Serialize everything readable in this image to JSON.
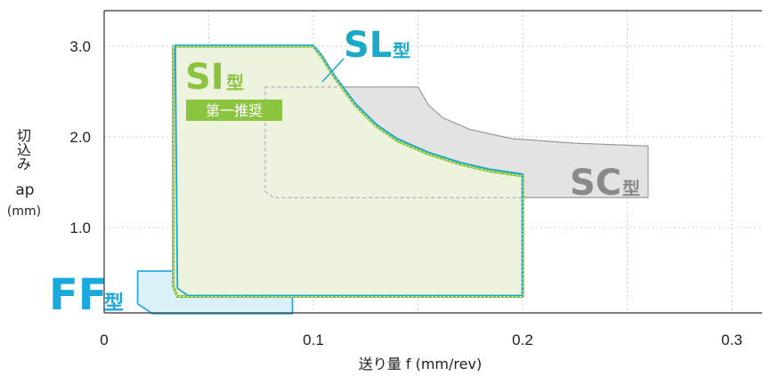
{
  "chart_data": {
    "type": "area",
    "xlabel": "送り量  f (mm/rev)",
    "ylabel_lines": [
      "切",
      "込",
      "み",
      "ap",
      "(mm)"
    ],
    "xlim": [
      0,
      0.32
    ],
    "ylim": [
      0,
      3.3
    ],
    "x_ticks": [
      "0",
      "0.1",
      "0.2",
      "0.3"
    ],
    "y_ticks": [
      "1.0",
      "2.0",
      "3.0"
    ],
    "grid": true,
    "colors": {
      "sl": "#1aa9c8",
      "si": "#8bc540",
      "si_fill": "#eef3e0",
      "sc": "#8a8a8a",
      "sc_fill": "#e3e3e3",
      "ff": "#2aaee0",
      "ff_fill": "#ddf1fa"
    },
    "series": [
      {
        "key": "sc",
        "label_main": "SC",
        "label_suffix": "型",
        "points": [
          [
            0.077,
            2.55
          ],
          [
            0.15,
            2.55
          ],
          [
            0.155,
            2.35
          ],
          [
            0.162,
            2.21
          ],
          [
            0.175,
            2.08
          ],
          [
            0.195,
            1.98
          ],
          [
            0.225,
            1.93
          ],
          [
            0.26,
            1.9
          ],
          [
            0.26,
            1.33
          ],
          [
            0.081,
            1.33
          ],
          [
            0.077,
            1.4
          ]
        ]
      },
      {
        "key": "ff",
        "label_main": "FF",
        "label_suffix": "型",
        "points": [
          [
            0.016,
            0.52
          ],
          [
            0.052,
            0.52
          ],
          [
            0.06,
            0.44
          ],
          [
            0.072,
            0.36
          ],
          [
            0.09,
            0.29
          ],
          [
            0.09,
            0.05
          ],
          [
            0.023,
            0.05
          ],
          [
            0.016,
            0.16
          ]
        ]
      },
      {
        "key": "si",
        "label_main": "SI",
        "label_suffix": "型",
        "badge": "第一推奨",
        "points": [
          [
            0.033,
            3.0
          ],
          [
            0.1,
            3.0
          ],
          [
            0.104,
            2.88
          ],
          [
            0.11,
            2.66
          ],
          [
            0.12,
            2.35
          ],
          [
            0.13,
            2.12
          ],
          [
            0.14,
            1.96
          ],
          [
            0.155,
            1.81
          ],
          [
            0.17,
            1.7
          ],
          [
            0.185,
            1.62
          ],
          [
            0.2,
            1.57
          ],
          [
            0.2,
            0.24
          ],
          [
            0.035,
            0.24
          ],
          [
            0.033,
            0.35
          ]
        ]
      },
      {
        "key": "sl",
        "label_main": "SL",
        "label_suffix": "型",
        "points": [
          [
            0.034,
            3.01
          ],
          [
            0.1,
            3.01
          ],
          [
            0.104,
            2.9
          ],
          [
            0.11,
            2.68
          ],
          [
            0.12,
            2.37
          ],
          [
            0.13,
            2.14
          ],
          [
            0.14,
            1.98
          ],
          [
            0.155,
            1.83
          ],
          [
            0.17,
            1.72
          ],
          [
            0.185,
            1.64
          ],
          [
            0.2,
            1.59
          ],
          [
            0.2,
            0.25
          ],
          [
            0.04,
            0.25
          ],
          [
            0.035,
            0.33
          ]
        ]
      }
    ]
  }
}
